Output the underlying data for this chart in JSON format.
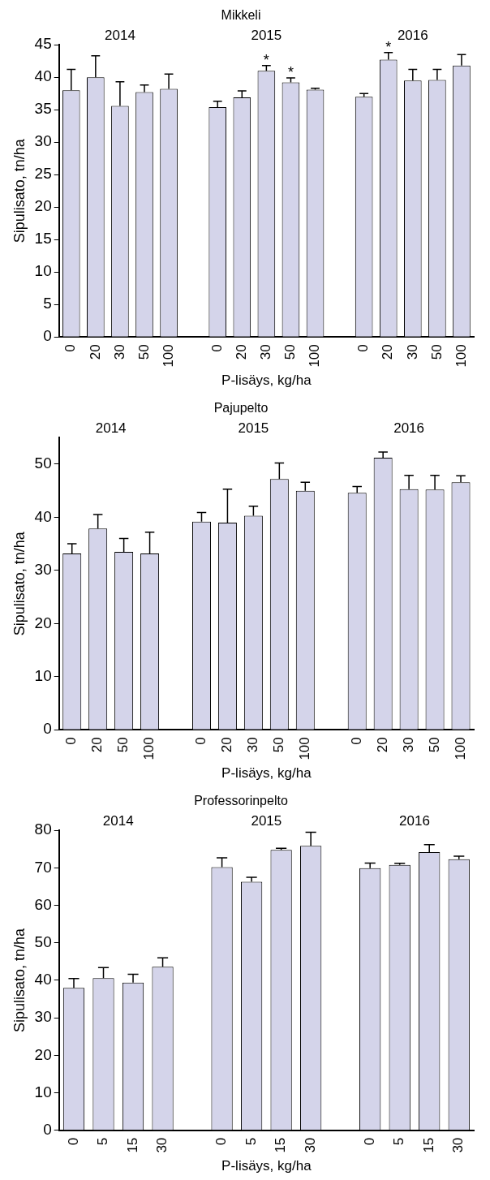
{
  "chart_data": [
    {
      "type": "bar",
      "title": "Mikkeli",
      "xlabel": "P-lisäys, kg/ha",
      "ylabel": "Sipulisato, tn/ha",
      "categories": [
        "0",
        "20",
        "30",
        "50",
        "100",
        null,
        "0",
        "20",
        "30",
        "50",
        "100",
        null,
        "0",
        "20",
        "30",
        "50",
        "100"
      ],
      "values": [
        38,
        40,
        35.6,
        37.7,
        38.2,
        null,
        35.4,
        36.9,
        41.0,
        39.2,
        38.1,
        null,
        37,
        42.7,
        39.5,
        39.6,
        41.8
      ],
      "errors": [
        3.2,
        3.3,
        3.7,
        1.1,
        2.3,
        null,
        0.9,
        1.0,
        0.8,
        0.7,
        0.2,
        null,
        0.5,
        1.1,
        1.7,
        1.6,
        1.7
      ],
      "value_labels": [
        null,
        null,
        null,
        null,
        null,
        null,
        null,
        null,
        "*",
        "*",
        null,
        null,
        null,
        "*",
        null,
        null,
        null
      ],
      "color": "#d4d4ea",
      "ylim": [
        0,
        45
      ],
      "yticks": [
        0,
        5,
        10,
        15,
        20,
        25,
        30,
        35,
        40,
        45
      ],
      "grid": false,
      "annotations": [
        "2014",
        "2015",
        "2016"
      ]
    },
    {
      "type": "bar",
      "title": "Pajupelto",
      "xlabel": "P-lisäys, kg/ha",
      "ylabel": "Sipulisato, tn/ha",
      "categories": [
        "0",
        "20",
        "50",
        "100",
        null,
        "0",
        "20",
        "30",
        "50",
        "100",
        null,
        "0",
        "20",
        "30",
        "50",
        "100"
      ],
      "values": [
        33.2,
        37.9,
        33.5,
        33.2,
        null,
        39.2,
        39,
        40.3,
        47.2,
        45,
        null,
        44.6,
        51.2,
        45.3,
        45.2,
        46.6
      ],
      "errors": [
        1.8,
        2.6,
        2.5,
        4.0,
        null,
        1.7,
        6.3,
        1.8,
        3,
        1.6,
        null,
        1.2,
        1.1,
        2.6,
        2.7,
        1.2
      ],
      "color": "#d4d4ea",
      "ylim": [
        0,
        55
      ],
      "yticks": [
        0,
        10,
        20,
        30,
        40,
        50
      ],
      "grid": false,
      "annotations": [
        "2014",
        "2015",
        "2016"
      ]
    },
    {
      "type": "bar",
      "title": "Professorinpelto",
      "xlabel": "P-lisäys, kg/ha",
      "ylabel": "Sipulisato, tn/ha",
      "categories": [
        "0",
        "5",
        "15",
        "30",
        null,
        "0",
        "5",
        "15",
        "30",
        null,
        "0",
        "5",
        "15",
        "30"
      ],
      "values": [
        38,
        40.6,
        39.4,
        43.6,
        null,
        70.2,
        66.3,
        74.8,
        75.9,
        null,
        69.9,
        70.8,
        74.2,
        72.3
      ],
      "errors": [
        2.5,
        2.8,
        2.2,
        2.4,
        null,
        2.5,
        1.2,
        0.4,
        3.6,
        null,
        1.4,
        0.4,
        2,
        0.8
      ],
      "color": "#d4d4ea",
      "ylim": [
        0,
        80
      ],
      "yticks": [
        0,
        10,
        20,
        30,
        40,
        50,
        60,
        70,
        80
      ],
      "grid": false,
      "annotations": [
        "2014",
        "2015",
        "2016"
      ]
    }
  ]
}
